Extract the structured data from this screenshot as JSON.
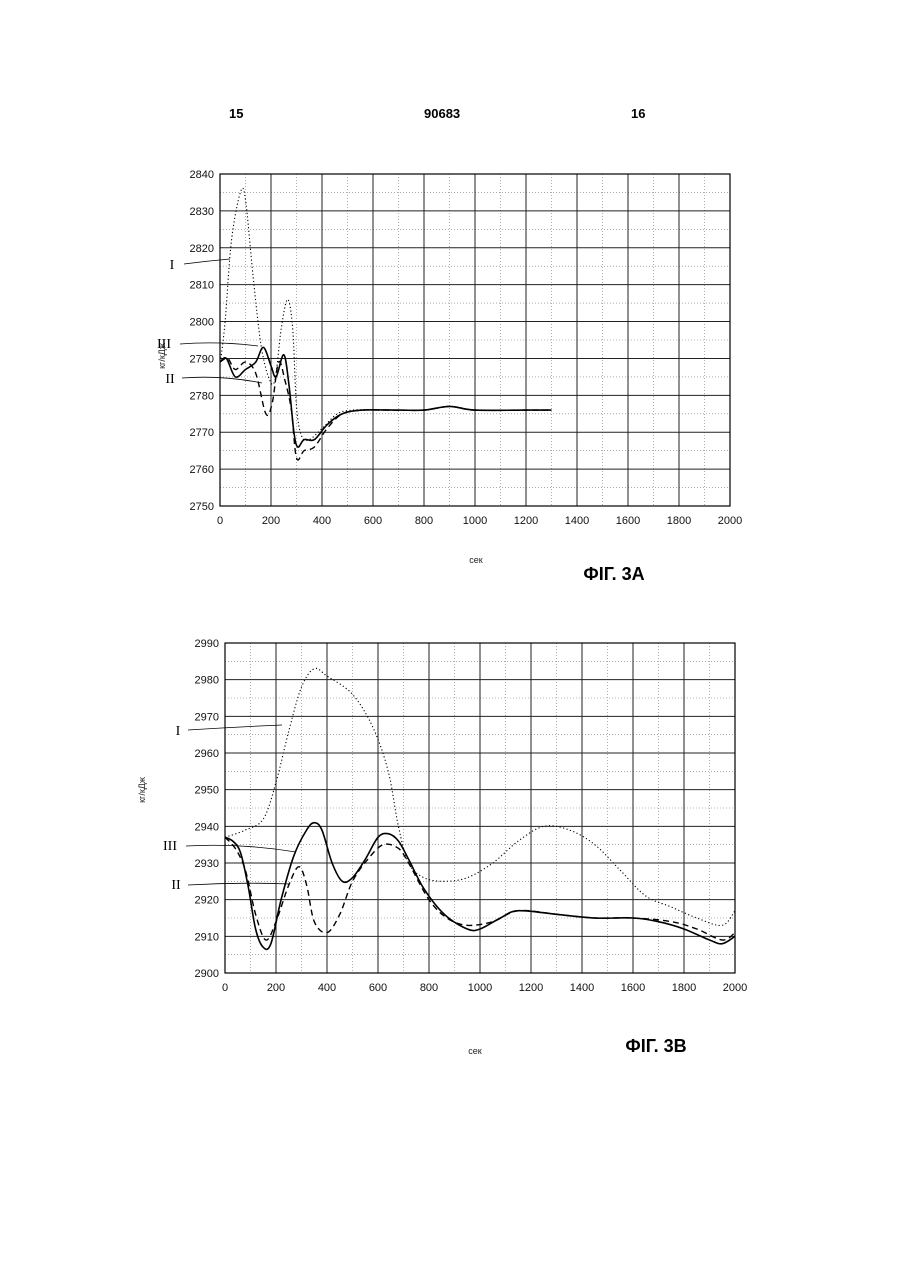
{
  "header": {
    "left": "15",
    "center": "90683",
    "right": "16"
  },
  "chart_data": [
    {
      "type": "line",
      "figure_label": "ФІГ. 3А",
      "title": "",
      "xlabel": "сек",
      "ylabel": "кг/кДж",
      "xlim": [
        0,
        2000
      ],
      "ylim": [
        2750,
        2840
      ],
      "x_ticks": [
        0,
        200,
        400,
        600,
        800,
        1000,
        1200,
        1400,
        1600,
        1800,
        2000
      ],
      "y_ticks": [
        2750,
        2760,
        2770,
        2780,
        2790,
        2800,
        2810,
        2820,
        2830,
        2840
      ],
      "grid": true,
      "series": [
        {
          "name": "I",
          "style": "dotted",
          "points": [
            [
              0,
              2788
            ],
            [
              20,
              2800
            ],
            [
              45,
              2822
            ],
            [
              80,
              2835
            ],
            [
              100,
              2833
            ],
            [
              130,
              2812
            ],
            [
              160,
              2794
            ],
            [
              190,
              2785
            ],
            [
              215,
              2784
            ],
            [
              240,
              2798
            ],
            [
              265,
              2806
            ],
            [
              285,
              2798
            ],
            [
              300,
              2777
            ],
            [
              320,
              2769
            ],
            [
              350,
              2768
            ],
            [
              400,
              2771
            ],
            [
              460,
              2775
            ],
            [
              520,
              2776
            ],
            [
              600,
              2776
            ],
            [
              700,
              2776
            ],
            [
              800,
              2776
            ],
            [
              900,
              2777
            ],
            [
              1000,
              2776
            ],
            [
              1100,
              2776
            ],
            [
              1200,
              2776
            ],
            [
              1300,
              2776
            ]
          ]
        },
        {
          "name": "II",
          "style": "dashed",
          "points": [
            [
              0,
              2789
            ],
            [
              30,
              2790
            ],
            [
              60,
              2787
            ],
            [
              100,
              2789
            ],
            [
              140,
              2786
            ],
            [
              180,
              2775
            ],
            [
              205,
              2778
            ],
            [
              230,
              2789
            ],
            [
              255,
              2784
            ],
            [
              280,
              2776
            ],
            [
              300,
              2763
            ],
            [
              330,
              2765
            ],
            [
              370,
              2766
            ],
            [
              420,
              2771
            ],
            [
              480,
              2775
            ],
            [
              560,
              2776
            ],
            [
              650,
              2776
            ],
            [
              800,
              2776
            ],
            [
              900,
              2777
            ],
            [
              1000,
              2776
            ],
            [
              1200,
              2776
            ],
            [
              1300,
              2776
            ]
          ]
        },
        {
          "name": "III",
          "style": "solid",
          "points": [
            [
              0,
              2789
            ],
            [
              25,
              2790
            ],
            [
              60,
              2785
            ],
            [
              100,
              2787
            ],
            [
              140,
              2789
            ],
            [
              170,
              2793
            ],
            [
              200,
              2788
            ],
            [
              220,
              2785
            ],
            [
              250,
              2791
            ],
            [
              270,
              2783
            ],
            [
              290,
              2770
            ],
            [
              305,
              2766
            ],
            [
              330,
              2768
            ],
            [
              370,
              2768
            ],
            [
              420,
              2772
            ],
            [
              480,
              2775
            ],
            [
              560,
              2776
            ],
            [
              700,
              2776
            ],
            [
              800,
              2776
            ],
            [
              900,
              2777
            ],
            [
              1000,
              2776
            ],
            [
              1200,
              2776
            ],
            [
              1300,
              2776
            ]
          ]
        }
      ]
    },
    {
      "type": "line",
      "figure_label": "ФІГ. 3В",
      "title": "",
      "xlabel": "сек",
      "ylabel": "кг/кДж",
      "xlim": [
        0,
        2000
      ],
      "ylim": [
        2900,
        2990
      ],
      "x_ticks": [
        0,
        200,
        400,
        600,
        800,
        1000,
        1200,
        1400,
        1600,
        1800,
        2000
      ],
      "y_ticks": [
        2900,
        2910,
        2920,
        2930,
        2940,
        2950,
        2960,
        2970,
        2980,
        2990
      ],
      "grid": true,
      "series": [
        {
          "name": "I",
          "style": "dotted",
          "points": [
            [
              0,
              2937
            ],
            [
              80,
              2939
            ],
            [
              150,
              2942
            ],
            [
              200,
              2952
            ],
            [
              250,
              2966
            ],
            [
              300,
              2978
            ],
            [
              350,
              2983
            ],
            [
              400,
              2981
            ],
            [
              500,
              2976
            ],
            [
              580,
              2967
            ],
            [
              640,
              2955
            ],
            [
              680,
              2940
            ],
            [
              720,
              2930
            ],
            [
              780,
              2926
            ],
            [
              860,
              2925
            ],
            [
              950,
              2926
            ],
            [
              1050,
              2930
            ],
            [
              1150,
              2936
            ],
            [
              1250,
              2940
            ],
            [
              1350,
              2939
            ],
            [
              1450,
              2935
            ],
            [
              1550,
              2928
            ],
            [
              1650,
              2921
            ],
            [
              1750,
              2918
            ],
            [
              1850,
              2915
            ],
            [
              1950,
              2913
            ],
            [
              2000,
              2917
            ]
          ]
        },
        {
          "name": "II",
          "style": "dashed",
          "points": [
            [
              0,
              2937
            ],
            [
              40,
              2934
            ],
            [
              80,
              2928
            ],
            [
              120,
              2916
            ],
            [
              160,
              2909
            ],
            [
              200,
              2914
            ],
            [
              250,
              2924
            ],
            [
              290,
              2929
            ],
            [
              320,
              2924
            ],
            [
              350,
              2914
            ],
            [
              400,
              2911
            ],
            [
              450,
              2916
            ],
            [
              500,
              2925
            ],
            [
              560,
              2931
            ],
            [
              620,
              2935
            ],
            [
              680,
              2934
            ],
            [
              720,
              2930
            ],
            [
              800,
              2920
            ],
            [
              870,
              2915
            ],
            [
              950,
              2913
            ],
            [
              1050,
              2914
            ],
            [
              1150,
              2917
            ],
            [
              1300,
              2916
            ],
            [
              1450,
              2915
            ],
            [
              1600,
              2915
            ],
            [
              1750,
              2914
            ],
            [
              1850,
              2912
            ],
            [
              1950,
              2909
            ],
            [
              2000,
              2911
            ]
          ]
        },
        {
          "name": "III",
          "style": "solid",
          "points": [
            [
              0,
              2937
            ],
            [
              30,
              2936
            ],
            [
              60,
              2933
            ],
            [
              90,
              2924
            ],
            [
              120,
              2912
            ],
            [
              150,
              2907
            ],
            [
              180,
              2908
            ],
            [
              220,
              2920
            ],
            [
              270,
              2932
            ],
            [
              320,
              2939
            ],
            [
              350,
              2941
            ],
            [
              380,
              2939
            ],
            [
              420,
              2930
            ],
            [
              460,
              2925
            ],
            [
              500,
              2926
            ],
            [
              550,
              2931
            ],
            [
              600,
              2937
            ],
            [
              640,
              2938
            ],
            [
              680,
              2936
            ],
            [
              720,
              2931
            ],
            [
              780,
              2923
            ],
            [
              860,
              2916
            ],
            [
              950,
              2912
            ],
            [
              1000,
              2912
            ],
            [
              1080,
              2915
            ],
            [
              1150,
              2917
            ],
            [
              1300,
              2916
            ],
            [
              1450,
              2915
            ],
            [
              1600,
              2915
            ],
            [
              1700,
              2914
            ],
            [
              1800,
              2912
            ],
            [
              1900,
              2909
            ],
            [
              1950,
              2908
            ],
            [
              2000,
              2910
            ]
          ]
        }
      ]
    }
  ]
}
